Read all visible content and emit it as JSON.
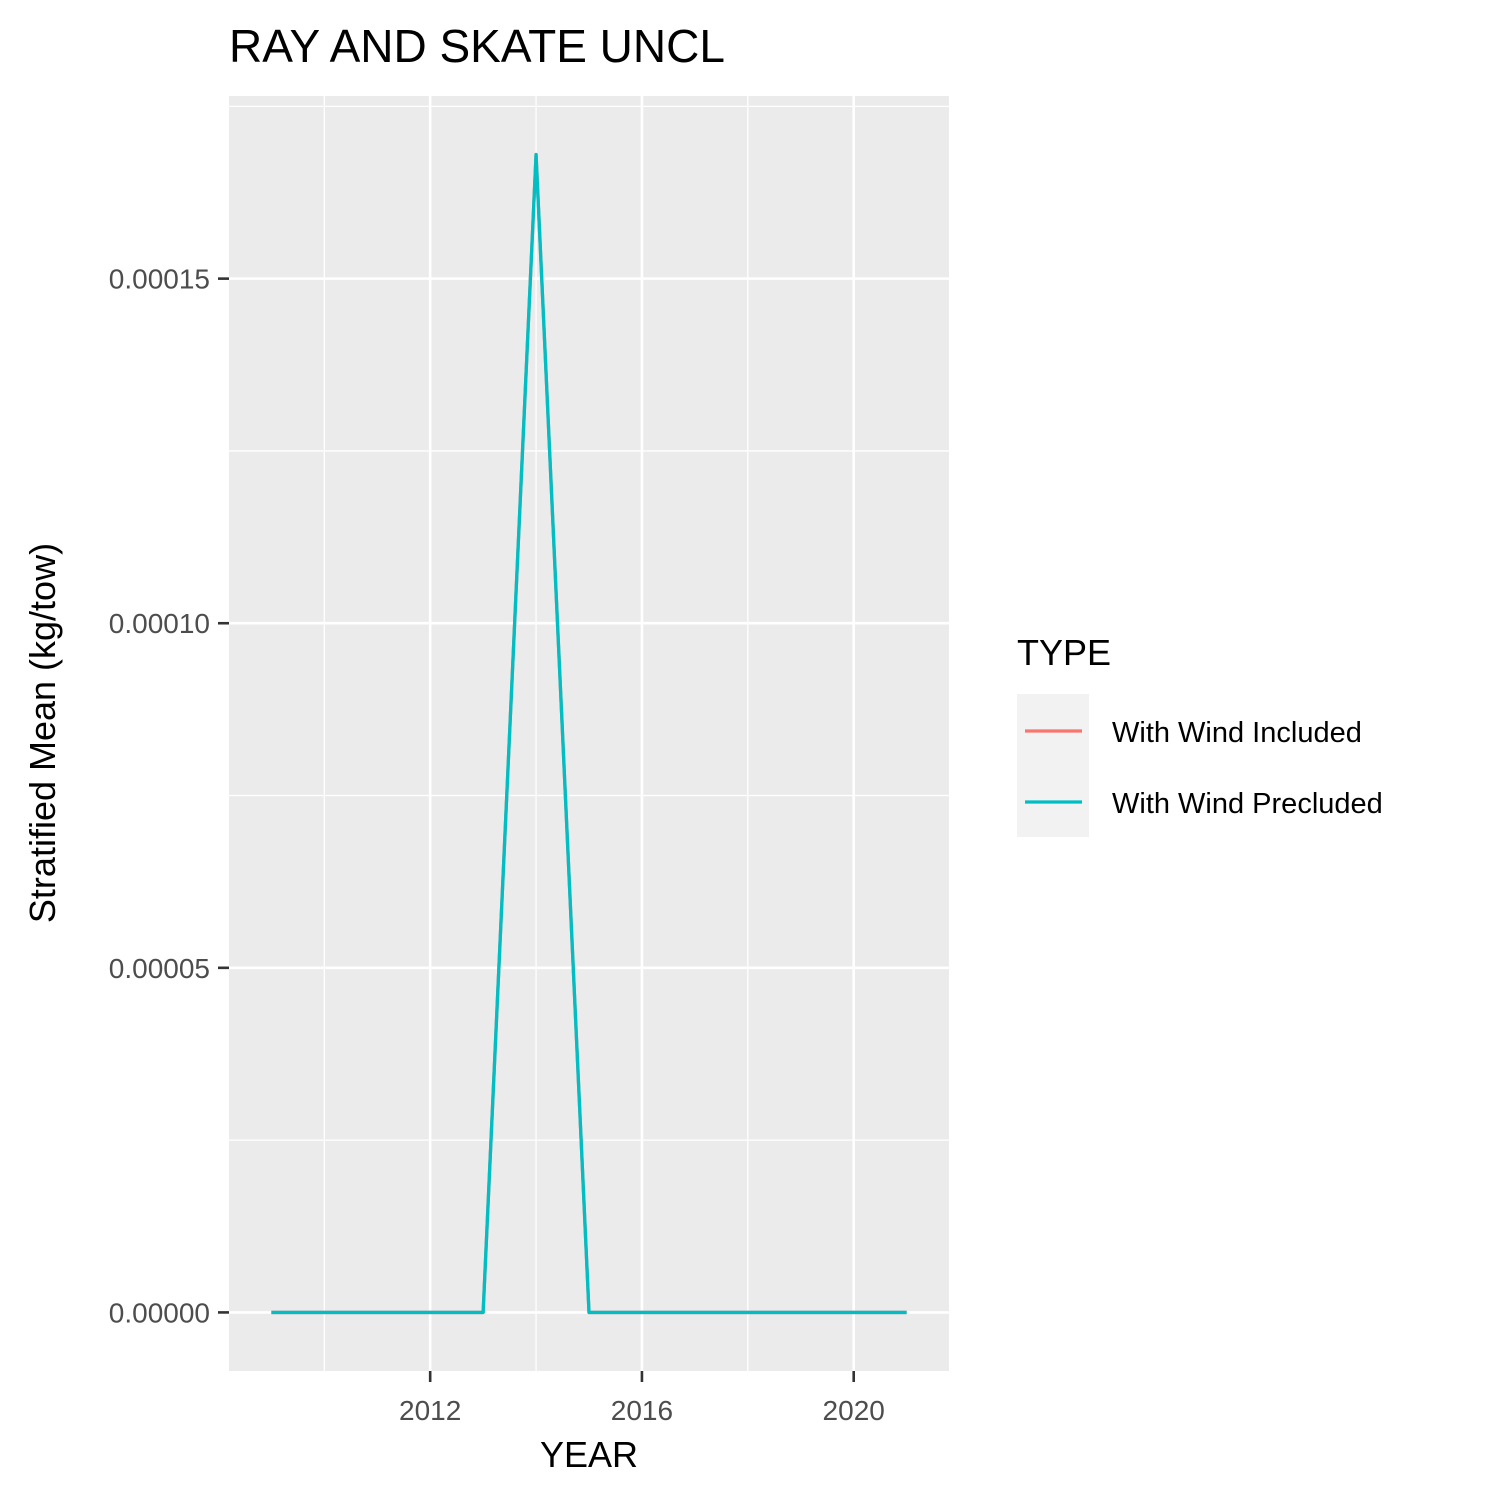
{
  "chart_data": {
    "type": "line",
    "title": "RAY AND SKATE UNCL",
    "xlabel": "YEAR",
    "ylabel": "Stratified Mean (kg/tow)",
    "x": [
      2009,
      2010,
      2011,
      2012,
      2013,
      2014,
      2015,
      2016,
      2017,
      2018,
      2019,
      2020,
      2021
    ],
    "x_ticks": [
      2012,
      2016,
      2020
    ],
    "x_tick_labels": [
      "2012",
      "2016",
      "2020"
    ],
    "y_ticks": [
      0,
      5e-05,
      0.0001,
      0.00015
    ],
    "y_tick_labels": [
      "0.00000",
      "0.00005",
      "0.00010",
      "0.00015"
    ],
    "xlim": [
      2008.2,
      2021.8
    ],
    "ylim": [
      -8.5e-06,
      0.0001765
    ],
    "grid": true,
    "legend": {
      "title": "TYPE",
      "position": "right"
    },
    "series": [
      {
        "name": "With Wind Included",
        "color": "#F8766D",
        "values": [
          0,
          0,
          0,
          0,
          0,
          0.000168,
          0,
          0,
          0,
          0,
          0,
          0,
          0
        ]
      },
      {
        "name": "With Wind Precluded",
        "color": "#00BFC4",
        "values": [
          0,
          0,
          0,
          0,
          0,
          0.000168,
          0,
          0,
          0,
          0,
          0,
          0,
          0
        ]
      }
    ]
  },
  "colors": {
    "panel_background": "#EBEBEB",
    "grid_line": "#FFFFFF",
    "legend_key_background": "#F2F2F2",
    "axis_tick": "#333333"
  }
}
